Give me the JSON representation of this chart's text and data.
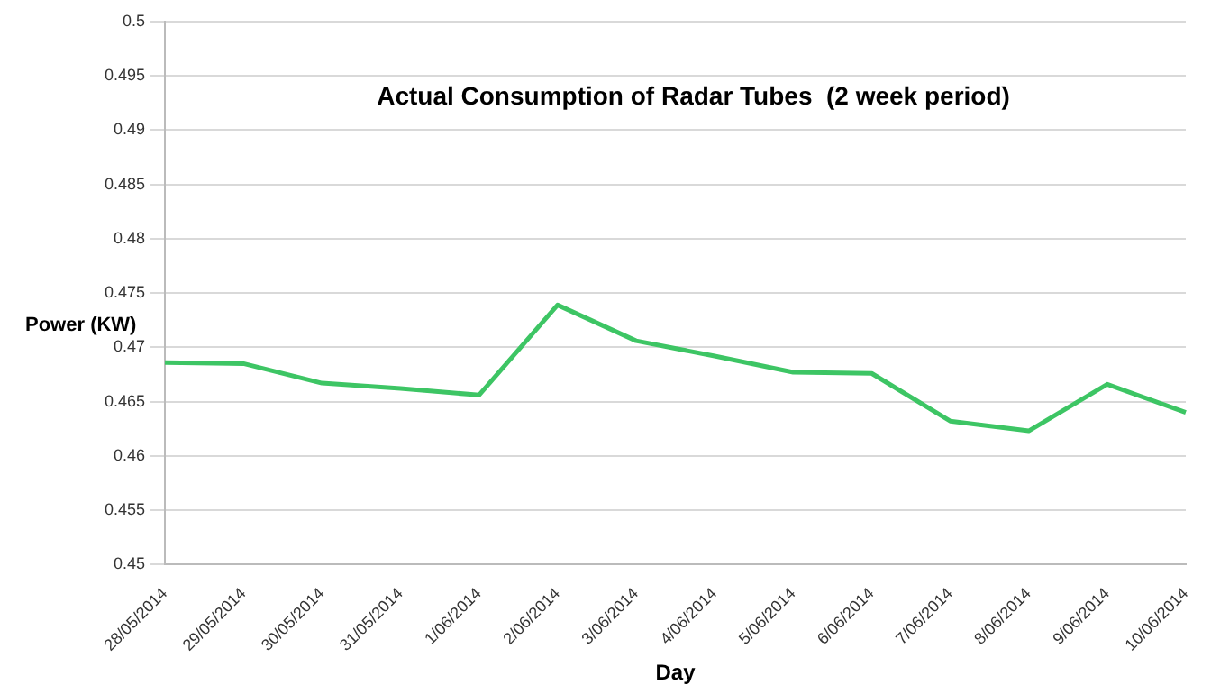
{
  "chart_data": {
    "type": "line",
    "title": "Actual Consumption of Radar Tubes  (2 week period)",
    "xlabel": "Day",
    "ylabel": "Power (KW)",
    "categories": [
      "28/05/2014",
      "29/05/2014",
      "30/05/2014",
      "31/05/2014",
      "1/06/2014",
      "2/06/2014",
      "3/06/2014",
      "4/06/2014",
      "5/06/2014",
      "6/06/2014",
      "7/06/2014",
      "8/06/2014",
      "9/06/2014",
      "10/06/2014"
    ],
    "series": [
      {
        "color": "#3dc564",
        "values": [
          0.4686,
          0.4685,
          0.4667,
          0.4662,
          0.4656,
          0.4739,
          0.4706,
          0.4692,
          0.4677,
          0.4676,
          0.4632,
          0.4623,
          0.4666,
          0.464
        ]
      }
    ],
    "ylim": [
      0.45,
      0.5
    ],
    "yticks": [
      0.45,
      0.455,
      0.46,
      0.465,
      0.47,
      0.475,
      0.48,
      0.485,
      0.49,
      0.495,
      0.5
    ],
    "grid": "y",
    "legend": false,
    "marker": "none",
    "line_style": "solid"
  }
}
